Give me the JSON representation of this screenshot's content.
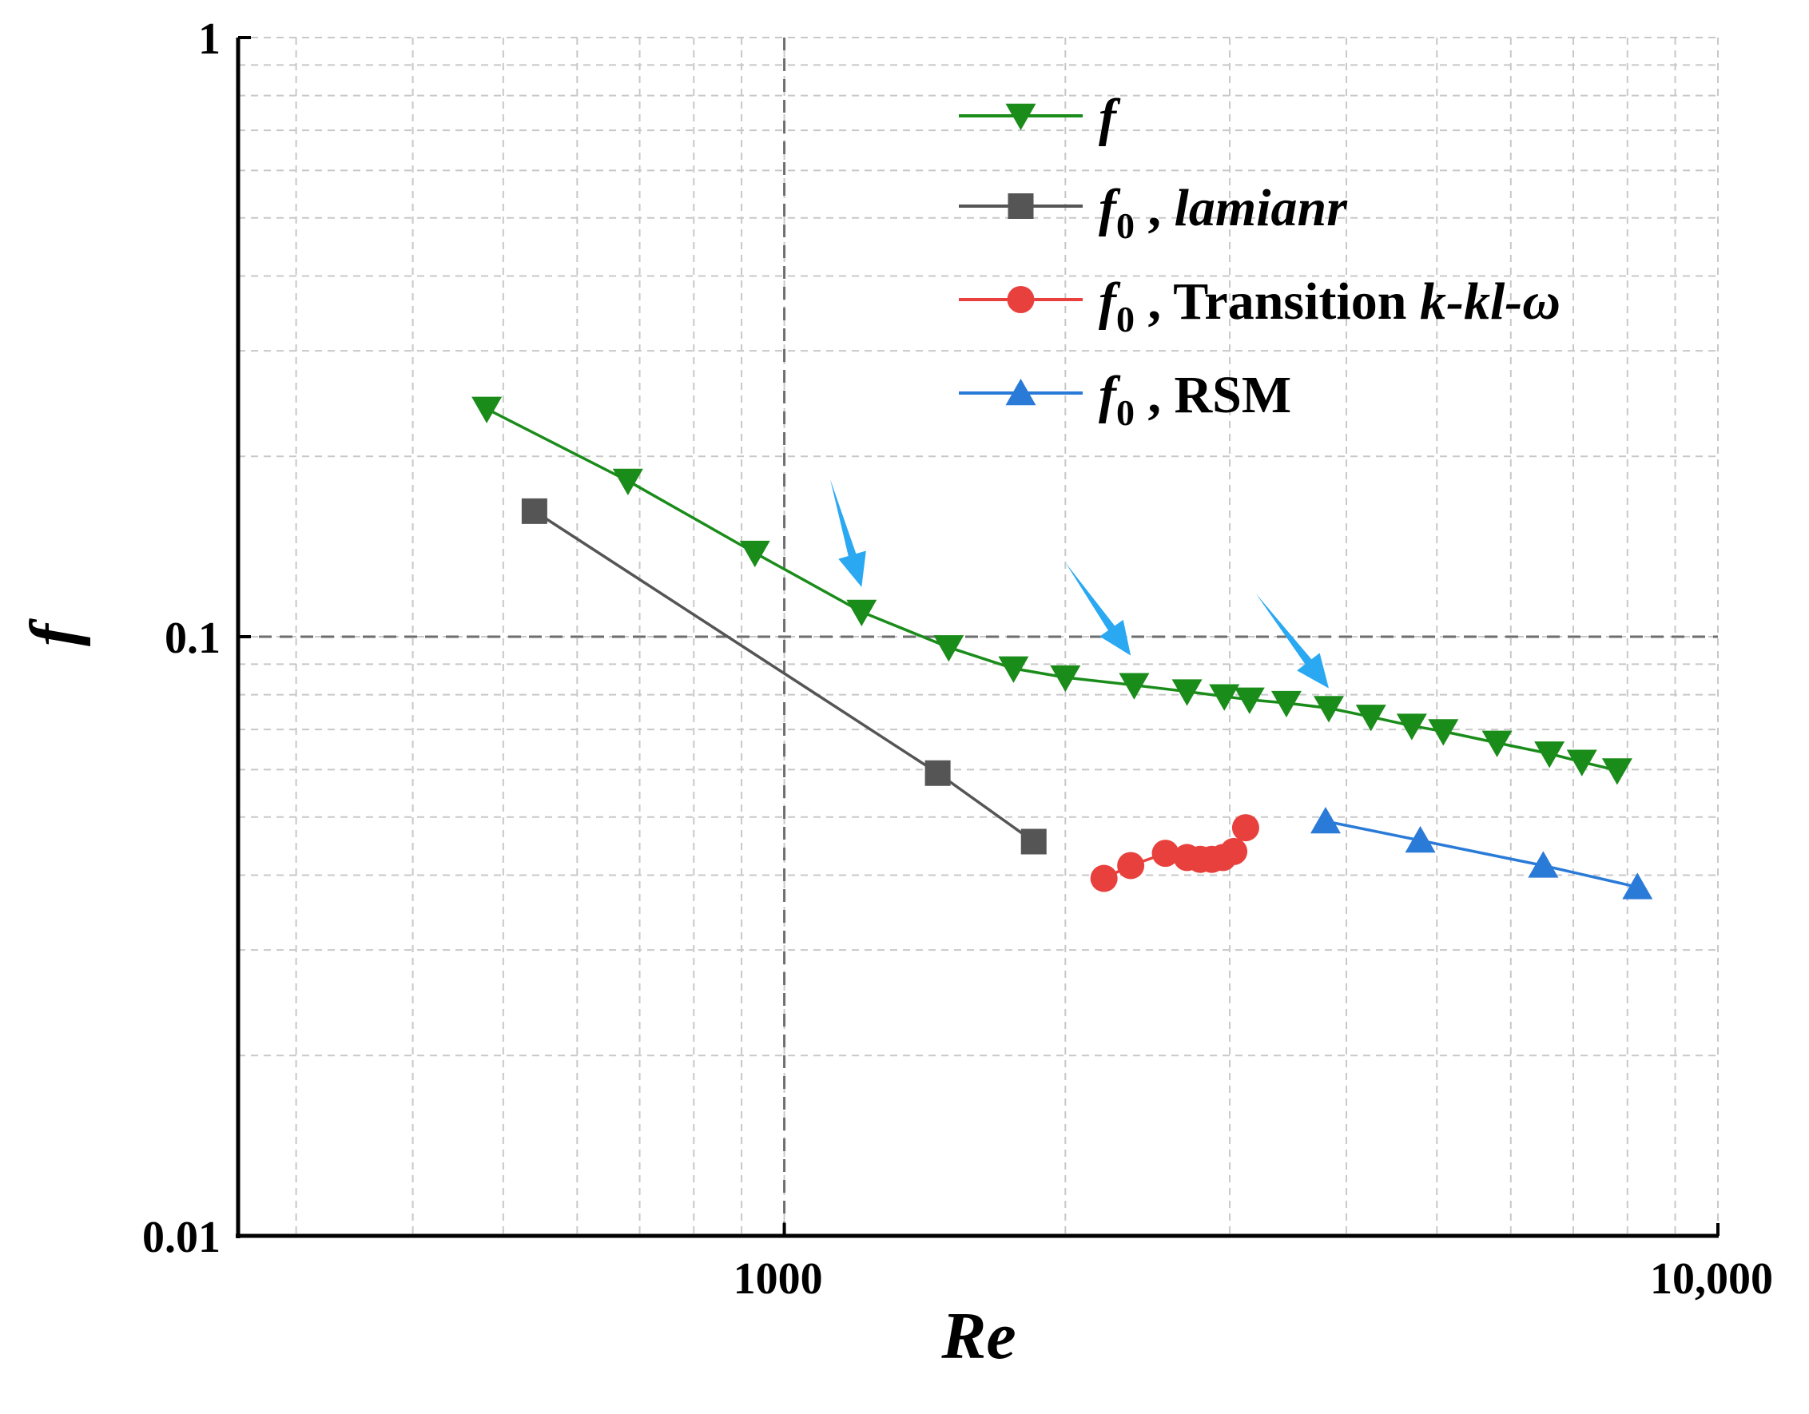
{
  "chart_data": {
    "type": "line",
    "xscale": "log",
    "yscale": "log",
    "xlim": [
      260,
      10000
    ],
    "ylim": [
      0.01,
      1
    ],
    "xlabel": "Re",
    "ylabel": "f",
    "grid": true,
    "xticks": [
      {
        "value": 1000,
        "label": "1000"
      },
      {
        "value": 10000,
        "label": "10,000"
      }
    ],
    "yticks": [
      {
        "value": 0.01,
        "label": "0.01"
      },
      {
        "value": 0.1,
        "label": "0.1"
      },
      {
        "value": 1,
        "label": "1"
      }
    ],
    "legend_position": "top-right",
    "series": [
      {
        "name": "f",
        "legend": {
          "main": "f",
          "sub": "",
          "rest": "",
          "rest_italic": ""
        },
        "color": "#1a8c1a",
        "marker": "triangle-down",
        "x": [
          480,
          680,
          930,
          1210,
          1500,
          1760,
          2000,
          2370,
          2700,
          2960,
          3150,
          3450,
          3830,
          4250,
          4700,
          5080,
          5800,
          6600,
          7150,
          7800
        ],
        "y": [
          0.24,
          0.182,
          0.138,
          0.11,
          0.096,
          0.0885,
          0.0855,
          0.083,
          0.081,
          0.0795,
          0.0785,
          0.0775,
          0.076,
          0.0735,
          0.071,
          0.0695,
          0.0665,
          0.0638,
          0.0618,
          0.0598
        ]
      },
      {
        "name": "f0 , lamianr",
        "legend": {
          "main": "f",
          "sub": "0",
          "rest": " , ",
          "rest_italic": "lamianr"
        },
        "color": "#555555",
        "marker": "square",
        "x": [
          540,
          1460,
          1850
        ],
        "y": [
          0.162,
          0.0592,
          0.0455
        ]
      },
      {
        "name": "f0 , Transition k-kl-ω",
        "legend": {
          "main": "f",
          "sub": "0",
          "rest": " , Transition ",
          "rest_italic": "k-kl-ω"
        },
        "color": "#e8403c",
        "marker": "circle",
        "x": [
          2200,
          2350,
          2560,
          2700,
          2790,
          2870,
          2950,
          3030,
          3120
        ],
        "y": [
          0.0395,
          0.0415,
          0.0435,
          0.0428,
          0.0425,
          0.0425,
          0.0428,
          0.0438,
          0.048
        ]
      },
      {
        "name": "f0 , RSM",
        "legend": {
          "main": "f",
          "sub": "0",
          "rest": " , RSM",
          "rest_italic": ""
        },
        "color": "#2a7ad8",
        "marker": "triangle-up",
        "x": [
          3800,
          4800,
          6500,
          8200
        ],
        "y": [
          0.0492,
          0.0457,
          0.0415,
          0.0382
        ]
      }
    ],
    "annotations": [
      {
        "type": "arrow",
        "color": "#2aa8f2",
        "from": [
          1120,
          0.183
        ],
        "to": [
          1210,
          0.121
        ]
      },
      {
        "type": "arrow",
        "color": "#2aa8f2",
        "from": [
          2000,
          0.133
        ],
        "to": [
          2350,
          0.093
        ]
      },
      {
        "type": "arrow",
        "color": "#2aa8f2",
        "from": [
          3200,
          0.118
        ],
        "to": [
          3830,
          0.082
        ]
      }
    ]
  }
}
